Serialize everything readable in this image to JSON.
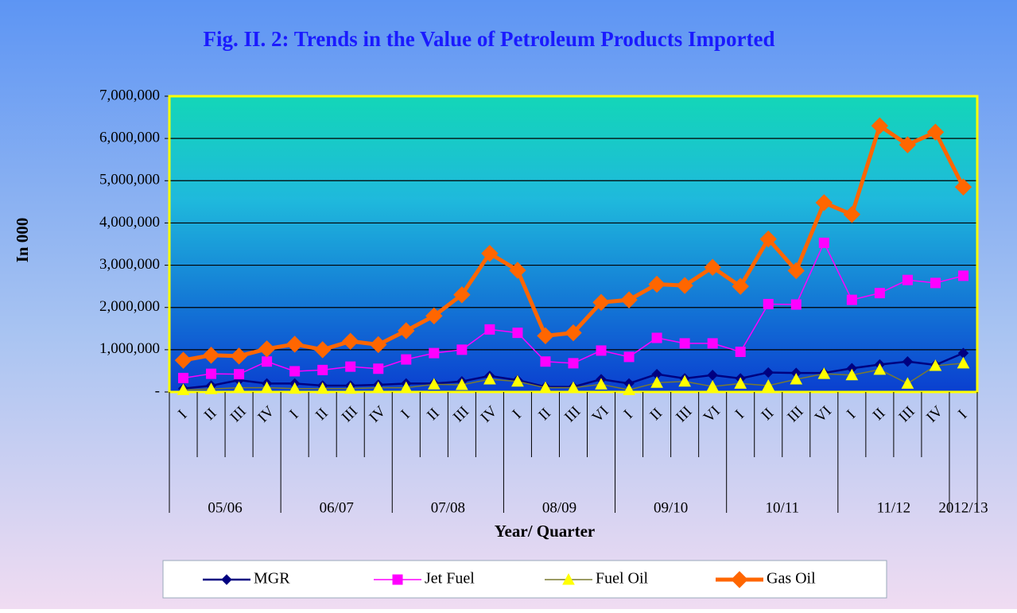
{
  "chart_data": {
    "type": "line",
    "title": "Fig. II. 2: Trends in the Value of Petroleum Products Imported",
    "y_label": "In 000",
    "x_label": "Year/ Quarter",
    "groups": [
      {
        "name": "05/06",
        "categories": [
          "I",
          "II",
          "III",
          "IV"
        ]
      },
      {
        "name": "06/07",
        "categories": [
          "I",
          "II",
          "III",
          "IV"
        ]
      },
      {
        "name": "07/08",
        "categories": [
          "I",
          "II",
          "III",
          "IV"
        ]
      },
      {
        "name": "08/09",
        "categories": [
          "I",
          "II",
          "III",
          "VI"
        ]
      },
      {
        "name": "09/10",
        "categories": [
          "I",
          "II",
          "III",
          "VI"
        ]
      },
      {
        "name": "10/11",
        "categories": [
          "I",
          "II",
          "III",
          "VI"
        ]
      },
      {
        "name": "11/12",
        "categories": [
          "I",
          "II",
          "III",
          "IV"
        ]
      },
      {
        "name": "2012/13",
        "categories": [
          "I"
        ]
      }
    ],
    "ylim": [
      0,
      7000000
    ],
    "yticks": [
      {
        "value": 0,
        "label": "-"
      },
      {
        "value": 1000000,
        "label": "1,000,000"
      },
      {
        "value": 2000000,
        "label": "2,000,000"
      },
      {
        "value": 3000000,
        "label": "3,000,000"
      },
      {
        "value": 4000000,
        "label": "4,000,000"
      },
      {
        "value": 5000000,
        "label": "5,000,000"
      },
      {
        "value": 6000000,
        "label": "6,000,000"
      },
      {
        "value": 7000000,
        "label": "7,000,000"
      }
    ],
    "grid": true,
    "series": [
      {
        "name": "MGR",
        "color": "#000080",
        "marker": "diamond",
        "values": [
          80000,
          150000,
          280000,
          200000,
          200000,
          150000,
          150000,
          170000,
          200000,
          200000,
          250000,
          380000,
          280000,
          120000,
          120000,
          300000,
          200000,
          420000,
          320000,
          400000,
          320000,
          460000,
          450000,
          450000,
          560000,
          650000,
          720000,
          640000,
          920000
        ]
      },
      {
        "name": "Jet Fuel",
        "color": "#ff00ff",
        "marker": "square",
        "values": [
          330000,
          430000,
          420000,
          720000,
          490000,
          520000,
          600000,
          550000,
          770000,
          920000,
          1000000,
          1480000,
          1400000,
          720000,
          680000,
          980000,
          830000,
          1280000,
          1150000,
          1150000,
          950000,
          2080000,
          2070000,
          3530000,
          2180000,
          2340000,
          2650000,
          2580000,
          2750000
        ]
      },
      {
        "name": "Fuel Oil",
        "color": "#ffff00",
        "line_color": "#7a7a30",
        "marker": "triangle",
        "values": [
          50000,
          70000,
          100000,
          100000,
          80000,
          80000,
          80000,
          100000,
          100000,
          180000,
          170000,
          300000,
          250000,
          100000,
          100000,
          180000,
          50000,
          220000,
          250000,
          130000,
          200000,
          150000,
          300000,
          430000,
          400000,
          530000,
          200000,
          620000,
          680000
        ]
      },
      {
        "name": "Gas Oil",
        "color": "#ff6600",
        "marker": "bigdiamond",
        "values": [
          750000,
          870000,
          850000,
          1020000,
          1130000,
          1000000,
          1200000,
          1120000,
          1450000,
          1800000,
          2300000,
          3280000,
          2880000,
          1330000,
          1400000,
          2120000,
          2180000,
          2550000,
          2520000,
          2950000,
          2500000,
          3620000,
          2870000,
          4480000,
          4200000,
          6300000,
          5850000,
          6150000,
          4850000
        ]
      }
    ]
  }
}
